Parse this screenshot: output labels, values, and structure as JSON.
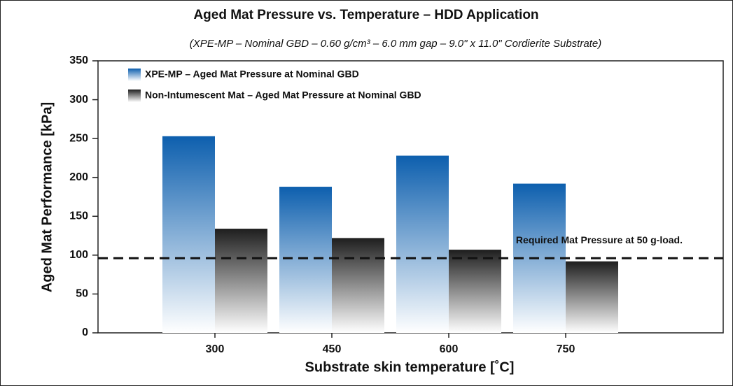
{
  "chart_data": {
    "type": "bar",
    "title": "Aged Mat Pressure vs. Temperature – HDD Application",
    "subtitle": "(XPE-MP – Nominal GBD – 0.60 g/cm³ – 6.0 mm gap – 9.0\" x 11.0\" Cordierite Substrate)",
    "x_label": "Substrate skin temperature [˚C]",
    "y_label": "Aged Mat Performance [kPa]",
    "categories": [
      "300",
      "450",
      "600",
      "750"
    ],
    "series": [
      {
        "name": "XPE-MP – Aged Mat Pressure at Nominal GBD",
        "color": "#0d5fae",
        "values": [
          253,
          188,
          228,
          192
        ]
      },
      {
        "name": "Non-Intumescent Mat – Aged Mat Pressure at Nominal GBD",
        "color": "#1e1e1e",
        "values": [
          134,
          122,
          107,
          92
        ]
      }
    ],
    "reference_line": {
      "value": 96,
      "label": "Required Mat Pressure at 50 g-load."
    },
    "ylim": [
      0,
      350
    ],
    "yticks": [
      0,
      50,
      100,
      150,
      200,
      250,
      300,
      350
    ],
    "legend": "upper left"
  }
}
